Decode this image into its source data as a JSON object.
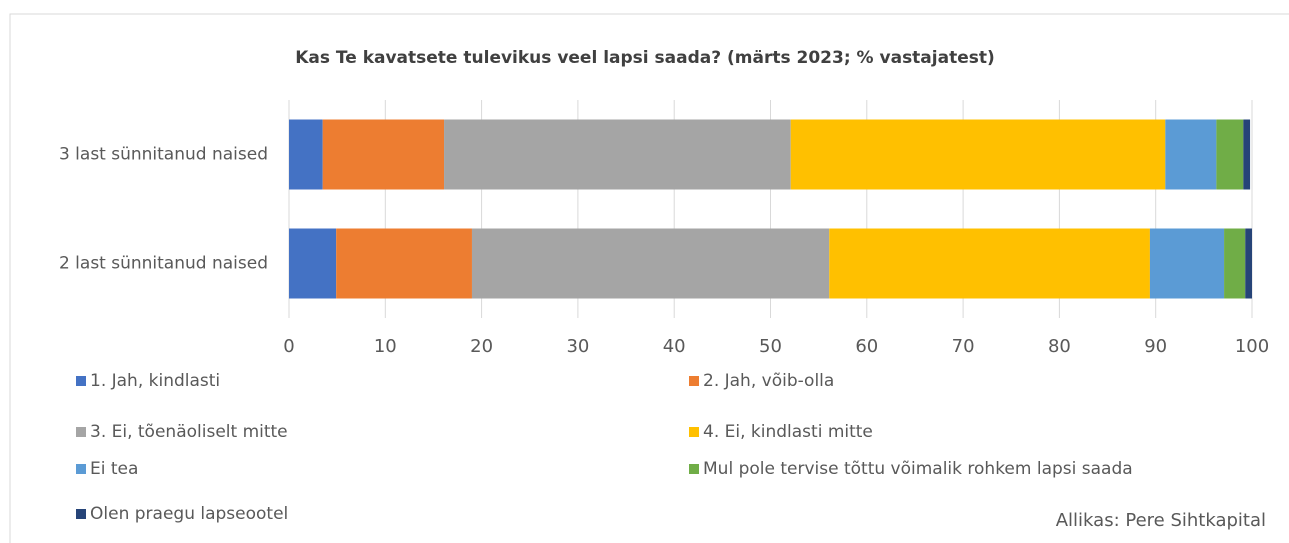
{
  "chart_data": {
    "type": "stacked_barh",
    "title": "Kas Te kavatsete tulevikus veel lapsi saada? (märts 2023; % vastajatest)",
    "categories": [
      "3 last sünnitanud naised",
      "2 last sünnitanud naised"
    ],
    "series": [
      {
        "name": "1. Jah, kindlasti",
        "color": "#4472c4",
        "values": [
          3.5,
          4.9
        ]
      },
      {
        "name": "2. Jah, võib-olla",
        "color": "#ed7d31",
        "values": [
          12.6,
          14.1
        ]
      },
      {
        "name": "3. Ei, tõenäoliselt mitte",
        "color": "#a5a5a5",
        "values": [
          36.0,
          37.1
        ]
      },
      {
        "name": "4. Ei, kindlasti mitte",
        "color": "#ffc000",
        "values": [
          38.9,
          33.3
        ]
      },
      {
        "name": "Ei tea",
        "color": "#5b9bd5",
        "values": [
          5.3,
          7.7
        ]
      },
      {
        "name": "Mul pole tervise tõttu võimalik rohkem lapsi saada",
        "color": "#70ad47",
        "values": [
          2.8,
          2.2
        ]
      },
      {
        "name": "Olen praegu lapseootel",
        "color": "#264478",
        "values": [
          0.7,
          0.7
        ]
      }
    ],
    "xlim": [
      0,
      100
    ],
    "xticks": [
      0,
      10,
      20,
      30,
      40,
      50,
      60,
      70,
      80,
      90,
      100
    ],
    "grid": true,
    "source": "Allikas: Pere Sihtkapital"
  }
}
